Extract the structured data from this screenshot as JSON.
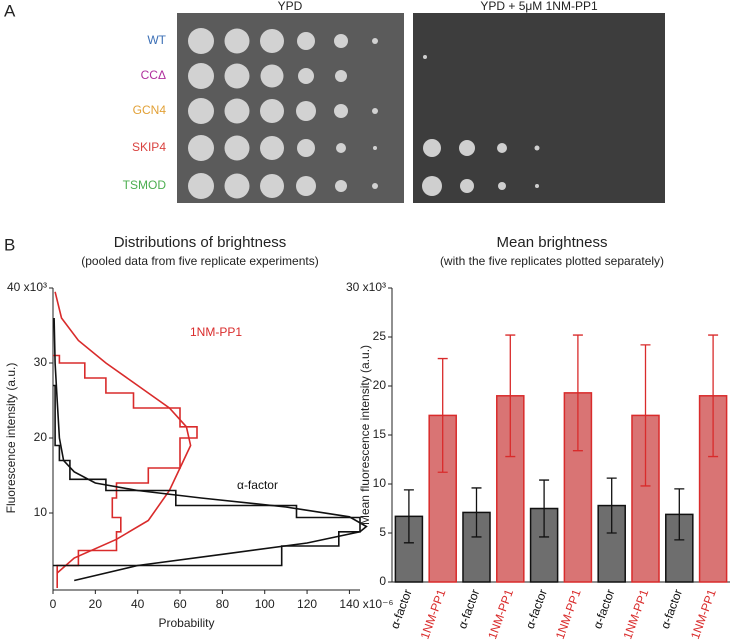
{
  "panel_a": {
    "label": "A",
    "conditions": [
      "YPD",
      "YPD + 5μM 1NM-PP1"
    ],
    "strains": [
      {
        "name": "WT",
        "color": "#3b6fb6"
      },
      {
        "name": "CCΔ",
        "color": "#b0309e"
      },
      {
        "name": "GCN4",
        "color": "#e2a137"
      },
      {
        "name": "SKIP4",
        "color": "#d9423f"
      },
      {
        "name": "TSMOD",
        "color": "#4cae50"
      }
    ]
  },
  "panel_b": {
    "label": "B"
  },
  "chart_data": [
    {
      "type": "line",
      "title": "Distributions of brightness",
      "subtitle": "(pooled data from five replicate experiments)",
      "x_label": "Probability",
      "y_label": "Fluorescence intensity (a.u.)",
      "xlim": [
        0,
        145
      ],
      "xticks": [
        0,
        20,
        40,
        60,
        80,
        100,
        120,
        {
          "value": 140,
          "label": "140 x10⁻⁶"
        }
      ],
      "ylim": [
        0,
        40
      ],
      "yticks": [
        10,
        20,
        30,
        {
          "value": 40,
          "label": "40 x10³"
        }
      ],
      "series": [
        {
          "name": "1NM-PP1",
          "color": "#d92b2b",
          "x": [
            2,
            2,
            12,
            12,
            30,
            30,
            32,
            32,
            28,
            28,
            30,
            30,
            45,
            45,
            60,
            60,
            68,
            68,
            60,
            60,
            38,
            38,
            25,
            25,
            15,
            15,
            3,
            3,
            0
          ],
          "values": [
            0,
            3,
            3,
            5,
            5,
            7.5,
            7.5,
            9.4,
            9.4,
            12,
            12,
            14,
            14,
            16,
            16,
            20,
            20,
            21.5,
            21.5,
            24,
            24,
            26,
            26,
            28,
            28,
            30,
            30,
            31,
            31
          ]
        },
        {
          "color": "#d92b2b",
          "x": [
            2,
            10,
            30,
            45,
            55,
            60,
            65,
            63,
            55,
            40,
            25,
            12,
            4,
            1
          ],
          "values": [
            2,
            4,
            6.5,
            9,
            13,
            16,
            19,
            21.5,
            24,
            27,
            30,
            33,
            36,
            39.5
          ]
        },
        {
          "name": "α-factor",
          "color": "#111111",
          "x": [
            0,
            108,
            108,
            135,
            135,
            145,
            145,
            115,
            115,
            58,
            58,
            25,
            25,
            8,
            8,
            3,
            3,
            1,
            1,
            0
          ],
          "values": [
            3,
            3,
            5.6,
            5.6,
            7.5,
            7.5,
            9.4,
            9.4,
            11,
            11,
            13,
            13,
            14.5,
            14.5,
            17,
            17,
            19,
            19,
            27,
            27
          ]
        },
        {
          "color": "#111111",
          "x": [
            10,
            40,
            80,
            120,
            145,
            148,
            140,
            110,
            70,
            40,
            20,
            10,
            5,
            3,
            2,
            1,
            0.5
          ],
          "values": [
            1,
            3,
            4.5,
            6,
            7.5,
            8.2,
            9.5,
            10.8,
            12,
            13,
            14,
            15.5,
            17,
            20,
            25,
            30,
            36
          ]
        }
      ]
    },
    {
      "type": "bar",
      "title": "Mean brightness",
      "subtitle": "(with the five replicates plotted separately)",
      "y_label": "Mean fluorescence intensity (a.u.)",
      "categories": [
        "α-factor",
        "1NM-PP1",
        "α-factor",
        "1NM-PP1",
        "α-factor",
        "1NM-PP1",
        "α-factor",
        "1NM-PP1",
        "α-factor",
        "1NM-PP1"
      ],
      "values": [
        6.7,
        17,
        7.1,
        19,
        7.5,
        19.3,
        7.8,
        17,
        6.9,
        19
      ],
      "errors": [
        2.7,
        5.8,
        2.5,
        6.2,
        2.9,
        5.9,
        2.8,
        7.2,
        2.6,
        6.2
      ],
      "colors": [
        "#6e6e6e",
        "#d97474",
        "#6e6e6e",
        "#d97474",
        "#6e6e6e",
        "#d97474",
        "#6e6e6e",
        "#d97474",
        "#6e6e6e",
        "#d97474"
      ],
      "label_colors": [
        "#111111",
        "#d92b2b",
        "#111111",
        "#d92b2b",
        "#111111",
        "#d92b2b",
        "#111111",
        "#d92b2b",
        "#111111",
        "#d92b2b"
      ],
      "ylim": [
        0,
        30
      ],
      "yticks": [
        0,
        5,
        10,
        15,
        20,
        25,
        {
          "value": 30,
          "label": "30 x10³"
        }
      ]
    }
  ]
}
